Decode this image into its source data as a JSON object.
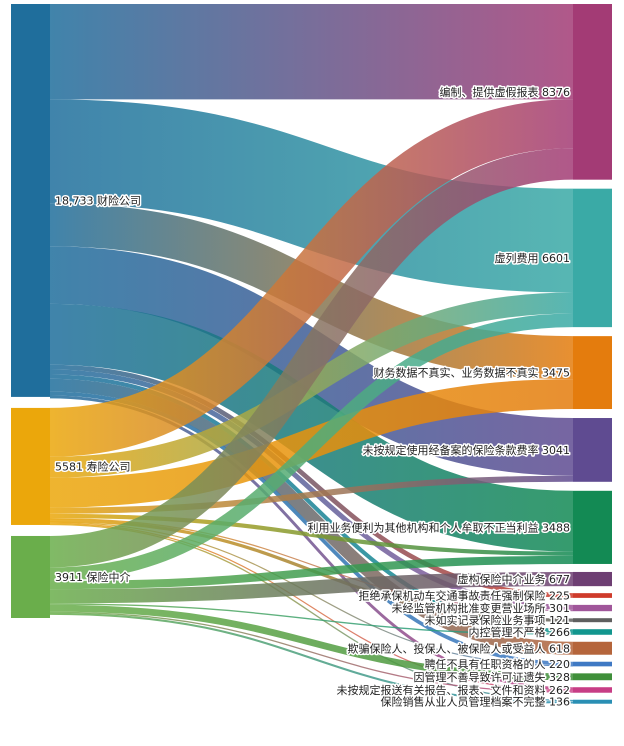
{
  "chart_data": {
    "type": "sankey",
    "sources": [
      {
        "name": "财险公司",
        "value": 18733,
        "label": "18,733 财险公司",
        "color": "#1f6e9c"
      },
      {
        "name": "寿险公司",
        "value": 5581,
        "label": "5581 寿险公司",
        "color": "#eba70b"
      },
      {
        "name": "保险中介",
        "value": 3911,
        "label": "3911 保险中介",
        "color": "#6aae4b"
      }
    ],
    "targets": [
      {
        "name": "编制、提供虚假报表",
        "value": 8376,
        "label": "编制、提供虚假报表 8376",
        "color": "#a33b75"
      },
      {
        "name": "虚列费用",
        "value": 6601,
        "label": "虚列费用 6601",
        "color": "#3aaaa6"
      },
      {
        "name": "财务数据不真实、业务数据不真实",
        "value": 3475,
        "label": "财务数据不真实、业务数据不真实 3475",
        "color": "#e47c0d"
      },
      {
        "name": "未按规定使用经备案的保险条款费率",
        "value": 3041,
        "label": "未按规定使用经备案的保险条款费率 3041",
        "color": "#5f4b91"
      },
      {
        "name": "利用业务便利为其他机构和个人牟取不正当利益",
        "value": 3488,
        "label": "利用业务便利为其他机构和个人牟取不正当利益 3488",
        "color": "#138a54"
      },
      {
        "name": "虚构保险中介业务",
        "value": 677,
        "label": "虚构保险中介业务 677",
        "color": "#6e3f73"
      },
      {
        "name": "拒绝承保机动车交通事故责任强制保险",
        "value": 225,
        "label": "拒绝承保机动车交通事故责任强制保险 225",
        "color": "#cf3b2b"
      },
      {
        "name": "未经监管机构批准变更营业场所",
        "value": 301,
        "label": "未经监管机构批准变更营业场所 301",
        "color": "#a0569a"
      },
      {
        "name": "未如实记录保险业务事项",
        "value": 121,
        "label": "未如实记录保险业务事项 121",
        "color": "#5f5f5f"
      },
      {
        "name": "内控管理不严格",
        "value": 266,
        "label": "内控管理不严格 266",
        "color": "#12968e"
      },
      {
        "name": "欺骗保险人、投保人、被保险人或受益人",
        "value": 618,
        "label": "欺骗保险人、投保人、被保险人或受益人 618",
        "color": "#b5653b"
      },
      {
        "name": "聘任不具有任职资格的人",
        "value": 220,
        "label": "聘任不具有任职资格的人 220",
        "color": "#3f79c4"
      },
      {
        "name": "因管理不善导致许可证遗失",
        "value": 328,
        "label": "因管理不善导致许可证遗失 328",
        "color": "#3f8f3a"
      },
      {
        "name": "未按规定报送有关报告、报表、文件和资料",
        "value": 262,
        "label": "未按规定报送有关报告、报表、文件和资料 262",
        "color": "#c73d85"
      },
      {
        "name": "保险销售从业人员管理档案不完整",
        "value": 136,
        "label": "保险销售从业人员管理档案不完整 136",
        "color": "#2a8fb4"
      }
    ],
    "links": [
      {
        "source": 0,
        "target": 0,
        "value": 4550
      },
      {
        "source": 0,
        "target": 1,
        "value": 4950
      },
      {
        "source": 0,
        "target": 2,
        "value": 2050
      },
      {
        "source": 0,
        "target": 3,
        "value": 2750
      },
      {
        "source": 0,
        "target": 4,
        "value": 2900
      },
      {
        "source": 0,
        "target": 6,
        "value": 225
      },
      {
        "source": 0,
        "target": 7,
        "value": 240
      },
      {
        "source": 0,
        "target": 9,
        "value": 200
      },
      {
        "source": 0,
        "target": 10,
        "value": 618
      },
      {
        "source": 0,
        "target": 11,
        "value": 180
      },
      {
        "source": 0,
        "target": 13,
        "value": 140
      },
      {
        "source": 1,
        "target": 0,
        "value": 2326
      },
      {
        "source": 1,
        "target": 1,
        "value": 1004
      },
      {
        "source": 1,
        "target": 2,
        "value": 1425
      },
      {
        "source": 1,
        "target": 3,
        "value": 291
      },
      {
        "source": 1,
        "target": 4,
        "value": 200
      },
      {
        "source": 1,
        "target": 7,
        "value": 61
      },
      {
        "source": 1,
        "target": 8,
        "value": 121
      },
      {
        "source": 1,
        "target": 11,
        "value": 40
      },
      {
        "source": 1,
        "target": 13,
        "value": 60
      },
      {
        "source": 1,
        "target": 14,
        "value": 53
      },
      {
        "source": 2,
        "target": 0,
        "value": 1500
      },
      {
        "source": 2,
        "target": 1,
        "value": 647
      },
      {
        "source": 2,
        "target": 4,
        "value": 388
      },
      {
        "source": 2,
        "target": 5,
        "value": 677
      },
      {
        "source": 2,
        "target": 9,
        "value": 66
      },
      {
        "source": 2,
        "target": 12,
        "value": 328
      },
      {
        "source": 2,
        "target": 13,
        "value": 62
      },
      {
        "source": 2,
        "target": 14,
        "value": 83
      }
    ]
  }
}
